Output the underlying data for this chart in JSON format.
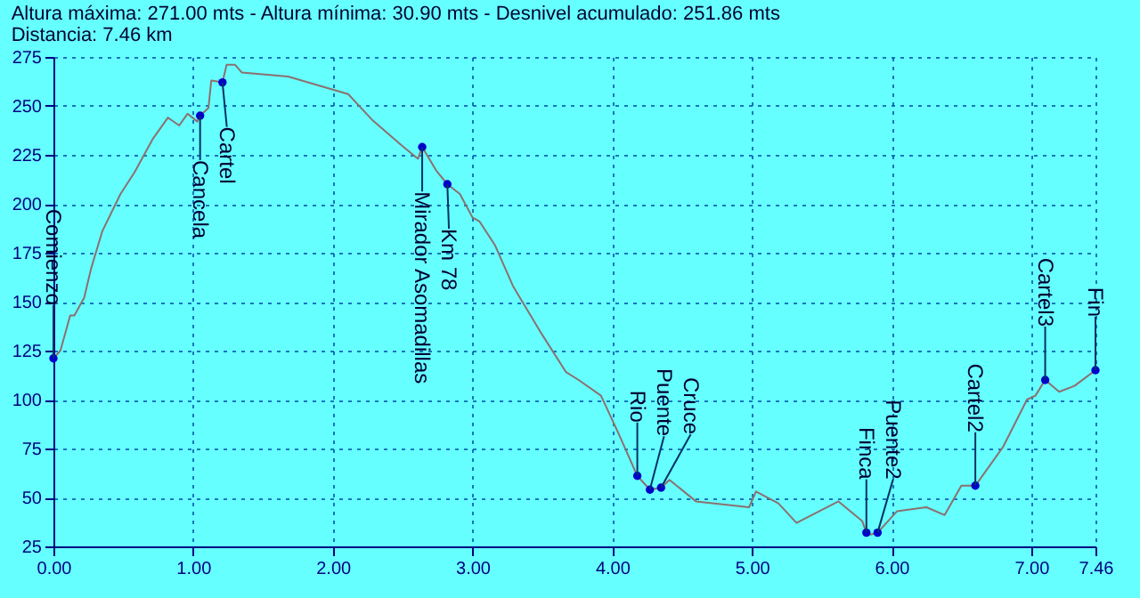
{
  "chart_data": {
    "type": "line",
    "title": "Altura máxima: 271.00 mts - Altura mínima: 30.90 mts - Desnivel acumulado: 251.86 mts",
    "subtitle": "Distancia: 7.46 km",
    "xlim": [
      0,
      7.46
    ],
    "ylim": [
      25,
      275
    ],
    "xticks": [
      {
        "value": 0,
        "label": "0.00"
      },
      {
        "value": 1,
        "label": "1.00"
      },
      {
        "value": 2,
        "label": "2.00"
      },
      {
        "value": 3,
        "label": "3.00"
      },
      {
        "value": 4,
        "label": "4.00"
      },
      {
        "value": 5,
        "label": "5.00"
      },
      {
        "value": 6,
        "label": "6.00"
      },
      {
        "value": 7,
        "label": "7.00"
      },
      7.46
    ],
    "yticks": [
      25,
      50,
      75,
      100,
      125,
      150,
      175,
      200,
      225,
      250,
      275
    ],
    "grid": true,
    "line_style": "solid",
    "series": [
      {
        "type": "line",
        "color": "#8c7070",
        "x": [
          0,
          0.05,
          0.12,
          0.15,
          0.22,
          0.27,
          0.35,
          0.48,
          0.58,
          0.71,
          0.82,
          0.9,
          0.96,
          1.03,
          1.05,
          1.11,
          1.13,
          1.21,
          1.24,
          1.3,
          1.35,
          1.68,
          2.11,
          2.28,
          2.49,
          2.61,
          2.64,
          2.74,
          2.82,
          2.91,
          3.0,
          3.05,
          3.16,
          3.29,
          3.5,
          3.67,
          3.76,
          3.92,
          4.05,
          4.18,
          4.27,
          4.35,
          4.41,
          4.6,
          4.98,
          5.03,
          5.19,
          5.32,
          5.62,
          5.79,
          5.82,
          5.85,
          5.9,
          6.04,
          6.25,
          6.38,
          6.5,
          6.6,
          6.8,
          6.97,
          7.03,
          7.1,
          7.2,
          7.31,
          7.46
        ],
        "values": [
          121,
          125,
          143,
          143,
          152,
          167,
          186,
          205,
          216,
          233,
          244,
          240,
          246,
          242,
          245,
          249,
          263,
          262,
          271,
          271,
          267,
          265,
          256,
          243,
          230,
          223,
          229,
          217,
          210,
          205,
          193,
          191,
          179,
          158,
          133,
          114,
          110,
          102,
          82,
          61,
          54,
          55,
          59,
          48,
          45,
          53,
          47,
          37,
          48,
          38,
          32,
          31,
          32,
          43,
          45,
          41,
          56,
          56,
          76,
          100,
          102,
          110,
          104,
          107,
          115
        ]
      },
      {
        "type": "scatter",
        "marker": "circle",
        "color": "#0000cc",
        "x": [
          0,
          1.05,
          1.21,
          2.64,
          2.82,
          4.18,
          4.27,
          4.35,
          5.82,
          5.9,
          6.6,
          7.1,
          7.46
        ],
        "values": [
          121,
          245,
          262,
          229,
          210,
          61,
          54,
          55,
          32,
          32,
          56,
          110,
          115
        ]
      }
    ],
    "annotations": [
      {
        "text": "Comienzo",
        "x": 0,
        "y": 121
      },
      {
        "text": "Cancela",
        "x": 1.05,
        "y": 245
      },
      {
        "text": "Cartel",
        "x": 1.21,
        "y": 262
      },
      {
        "text": "Mirador Asomadillas",
        "x": 2.64,
        "y": 229
      },
      {
        "text": "Km 78",
        "x": 2.82,
        "y": 210
      },
      {
        "text": "Rio",
        "x": 4.18,
        "y": 61
      },
      {
        "text": "Puente",
        "x": 4.27,
        "y": 54
      },
      {
        "text": "Cruce",
        "x": 4.35,
        "y": 55
      },
      {
        "text": "Finca",
        "x": 5.82,
        "y": 32
      },
      {
        "text": "Puente2",
        "x": 5.9,
        "y": 32
      },
      {
        "text": "Cartel2",
        "x": 6.6,
        "y": 56
      },
      {
        "text": "Cartel3",
        "x": 7.1,
        "y": 110
      },
      {
        "text": "Fin",
        "x": 7.46,
        "y": 115
      }
    ]
  }
}
